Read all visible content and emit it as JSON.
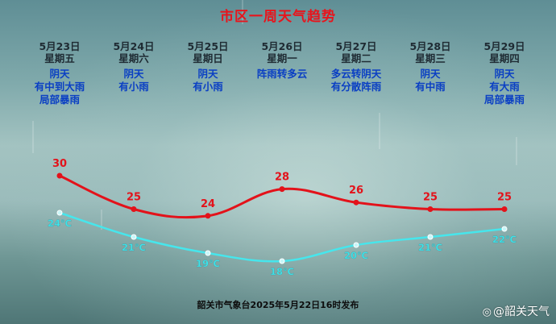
{
  "title": "市区一周天气趋势",
  "days": [
    {
      "date": "5月23日",
      "week": "星期五",
      "weather": [
        "阴天",
        "有中到大雨",
        "局部暴雨"
      ]
    },
    {
      "date": "5月24日",
      "week": "星期六",
      "weather": [
        "阴天",
        "有小雨"
      ]
    },
    {
      "date": "5月25日",
      "week": "星期日",
      "weather": [
        "阴天",
        "有小雨"
      ]
    },
    {
      "date": "5月26日",
      "week": "星期一",
      "weather": [
        "阵雨转多云"
      ]
    },
    {
      "date": "5月27日",
      "week": "星期二",
      "weather": [
        "多云转阴天",
        "有分散阵雨"
      ]
    },
    {
      "date": "5月28日",
      "week": "星期三",
      "weather": [
        "阴天",
        "有中雨"
      ]
    },
    {
      "date": "5月29日",
      "week": "星期四",
      "weather": [
        "阴天",
        "有大雨",
        "局部暴雨"
      ]
    }
  ],
  "chart_data": {
    "type": "line",
    "categories": [
      "5月23日",
      "5月24日",
      "5月25日",
      "5月26日",
      "5月27日",
      "5月28日",
      "5月29日"
    ],
    "series": [
      {
        "values": [
          30,
          25,
          24,
          28,
          26,
          25,
          25
        ],
        "labels": [
          "30",
          "25",
          "24",
          "28",
          "26",
          "25",
          "25"
        ],
        "color": "#e3121a"
      },
      {
        "values": [
          24,
          21,
          19,
          18,
          20,
          21,
          22
        ],
        "labels": [
          "24℃",
          "21℃",
          "19℃",
          "18℃",
          "20℃",
          "21℃",
          "22℃"
        ],
        "color": "#46e6ec"
      }
    ]
  },
  "footer": "韶关市气象台2025年5月22日16时发布",
  "watermark": {
    "icon": "weibo-icon",
    "text": "@韶关天气"
  }
}
